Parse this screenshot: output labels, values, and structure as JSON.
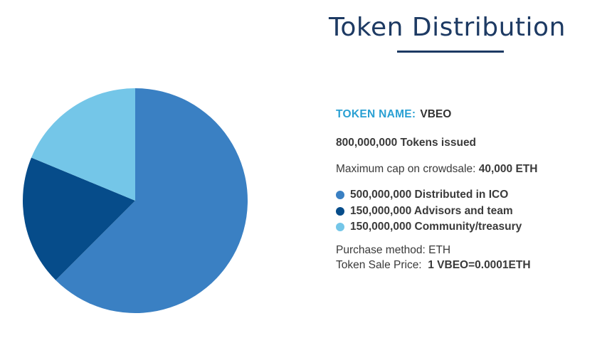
{
  "header": {
    "title": "Token Distribution"
  },
  "info": {
    "token_name_label": "TOKEN NAME:",
    "token_name_value": "VBEO",
    "tokens_issued": "800,000,000 Tokens issued",
    "cap_label": "Maximum cap on crowdsale:",
    "cap_value": "40,000 ETH",
    "purchase_method": "Purchase method: ETH",
    "price_label": "Token Sale Price:  ",
    "price_value": "1 VBEO=0.0001ETH"
  },
  "colors": {
    "title": "#1d3a63",
    "label_accent": "#2aa0d3"
  },
  "chart_data": {
    "type": "pie",
    "title": "",
    "slices": [
      {
        "label": "500,000,000 Distributed in ICO",
        "value": 500000000,
        "color": "#3a80c3"
      },
      {
        "label": "150,000,000 Advisors and team",
        "value": 150000000,
        "color": "#064c8a"
      },
      {
        "label": "150,000,000 Community/treasury",
        "value": 150000000,
        "color": "#74c6e8"
      }
    ],
    "start_angle_deg": 0,
    "direction": "clockwise",
    "legend_position": "right"
  }
}
